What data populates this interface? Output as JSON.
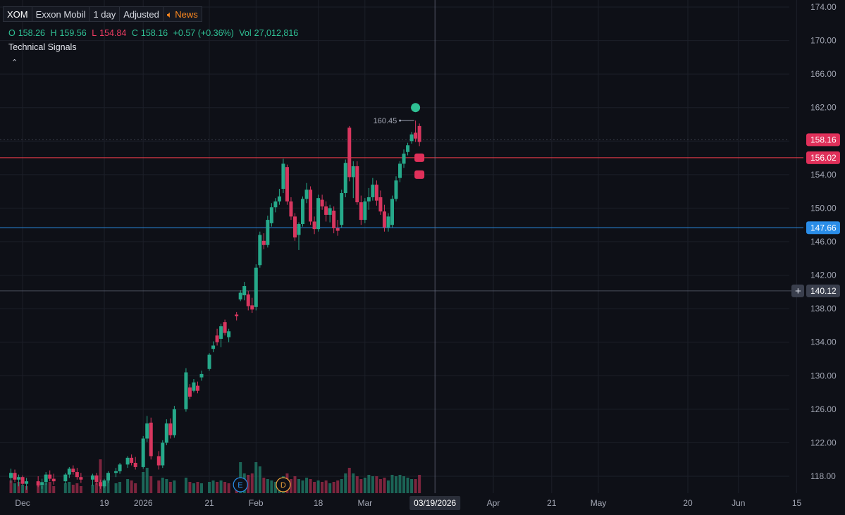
{
  "header": {
    "symbol": "XOM",
    "name": "Exxon Mobil",
    "interval": "1 day",
    "adjustment": "Adjusted",
    "news_label": "News",
    "news_icon": "speaker-icon"
  },
  "ohlc": {
    "o_label": "O",
    "o": "158.26",
    "h_label": "H",
    "h": "159.56",
    "l_label": "L",
    "l": "154.84",
    "c_label": "C",
    "c": "158.16",
    "change": "+0.57 (+0.36%)",
    "vol_label": "Vol",
    "vol": "27,012,816"
  },
  "technical_signals": "Technical Signals",
  "colors": {
    "up": "#26a98a",
    "down": "#d8365f",
    "bg": "#0e1017",
    "grid": "#1c1f29",
    "red_line": "#f23d4b",
    "blue_line": "#2a8de8",
    "last_price_badge": "#e0305a",
    "blue_badge": "#2a8de8",
    "crosshair_badge": "#3a3f4d"
  },
  "chart_data": {
    "type": "candlestick",
    "y_axis": {
      "min": 116,
      "max": 176,
      "ticks": [
        "174.00",
        "170.00",
        "166.00",
        "162.00",
        "158.00",
        "154.00",
        "150.00",
        "146.00",
        "142.00",
        "138.00",
        "134.00",
        "130.00",
        "126.00",
        "122.00",
        "118.00"
      ]
    },
    "x_axis": {
      "labels": [
        "Dec",
        "19",
        "2026",
        "21",
        "Feb",
        "18",
        "Mar",
        "Apr",
        "21",
        "May",
        "20",
        "Jun",
        "15"
      ],
      "label_days": [
        -21,
        0,
        10,
        27,
        39,
        55,
        67,
        100,
        115,
        127,
        150,
        163,
        178
      ],
      "crosshair_label": "03/19/2026",
      "crosshair_day": 85
    },
    "candles": [
      {
        "d": -24,
        "o": 117.8,
        "h": 118.9,
        "l": 117.2,
        "c": 118.4
      },
      {
        "d": -23,
        "o": 118.4,
        "h": 118.8,
        "l": 117.3,
        "c": 117.6
      },
      {
        "d": -22,
        "o": 117.6,
        "h": 118.2,
        "l": 116.8,
        "c": 117.9
      },
      {
        "d": -21,
        "o": 117.9,
        "h": 118.1,
        "l": 116.9,
        "c": 117.1
      },
      {
        "d": -20,
        "o": 117.1,
        "h": 117.8,
        "l": 116.4,
        "c": 117.4
      },
      {
        "d": -17,
        "o": 117.4,
        "h": 118.0,
        "l": 116.7,
        "c": 116.9
      },
      {
        "d": -16,
        "o": 116.9,
        "h": 117.7,
        "l": 116.5,
        "c": 117.3
      },
      {
        "d": -15,
        "o": 117.3,
        "h": 118.5,
        "l": 117.0,
        "c": 118.2
      },
      {
        "d": -14,
        "o": 118.2,
        "h": 118.7,
        "l": 117.4,
        "c": 117.7
      },
      {
        "d": -13,
        "o": 117.7,
        "h": 118.3,
        "l": 117.0,
        "c": 117.4
      },
      {
        "d": -10,
        "o": 117.4,
        "h": 118.4,
        "l": 117.1,
        "c": 118.2
      },
      {
        "d": -9,
        "o": 118.2,
        "h": 119.1,
        "l": 117.8,
        "c": 118.9
      },
      {
        "d": -8,
        "o": 118.9,
        "h": 119.3,
        "l": 118.2,
        "c": 118.5
      },
      {
        "d": -7,
        "o": 118.5,
        "h": 119.0,
        "l": 117.6,
        "c": 117.9
      },
      {
        "d": -6,
        "o": 117.9,
        "h": 118.4,
        "l": 117.2,
        "c": 117.6
      },
      {
        "d": -3,
        "o": 117.6,
        "h": 118.3,
        "l": 116.9,
        "c": 118.1
      },
      {
        "d": -2,
        "o": 118.1,
        "h": 118.4,
        "l": 117.0,
        "c": 117.3
      },
      {
        "d": -1,
        "o": 117.3,
        "h": 117.6,
        "l": 116.5,
        "c": 116.8
      },
      {
        "d": 0,
        "o": 116.8,
        "h": 117.7,
        "l": 116.6,
        "c": 117.5
      },
      {
        "d": 1,
        "o": 117.5,
        "h": 118.6,
        "l": 117.2,
        "c": 118.4
      },
      {
        "d": 3,
        "o": 118.4,
        "h": 119.0,
        "l": 117.9,
        "c": 118.6
      },
      {
        "d": 4,
        "o": 118.6,
        "h": 119.6,
        "l": 118.3,
        "c": 119.4
      },
      {
        "d": 6,
        "o": 119.4,
        "h": 120.4,
        "l": 119.0,
        "c": 120.2
      },
      {
        "d": 7,
        "o": 120.2,
        "h": 120.6,
        "l": 119.3,
        "c": 119.6
      },
      {
        "d": 8,
        "o": 119.6,
        "h": 120.3,
        "l": 118.8,
        "c": 119.1
      },
      {
        "d": 10,
        "o": 119.1,
        "h": 122.8,
        "l": 118.9,
        "c": 122.5
      },
      {
        "d": 11,
        "o": 122.5,
        "h": 125.2,
        "l": 122.1,
        "c": 124.3
      },
      {
        "d": 12,
        "o": 124.4,
        "h": 125.0,
        "l": 120.0,
        "c": 120.4
      },
      {
        "d": 14,
        "o": 120.4,
        "h": 121.0,
        "l": 118.8,
        "c": 119.3
      },
      {
        "d": 15,
        "o": 119.3,
        "h": 122.3,
        "l": 119.0,
        "c": 122.0
      },
      {
        "d": 16,
        "o": 122.0,
        "h": 124.8,
        "l": 121.7,
        "c": 124.3
      },
      {
        "d": 17,
        "o": 124.3,
        "h": 124.9,
        "l": 122.5,
        "c": 122.9
      },
      {
        "d": 18,
        "o": 122.9,
        "h": 126.4,
        "l": 122.6,
        "c": 126.0
      },
      {
        "d": 21,
        "o": 126.0,
        "h": 130.9,
        "l": 125.7,
        "c": 130.4
      },
      {
        "d": 22,
        "o": 128.6,
        "h": 129.0,
        "l": 127.2,
        "c": 127.5
      },
      {
        "d": 23,
        "o": 128.2,
        "h": 129.6,
        "l": 128.0,
        "c": 129.2
      },
      {
        "d": 24,
        "o": 128.8,
        "h": 129.3,
        "l": 127.9,
        "c": 128.2
      },
      {
        "d": 25,
        "o": 129.8,
        "h": 130.6,
        "l": 129.4,
        "c": 130.2
      },
      {
        "d": 27,
        "o": 130.8,
        "h": 132.7,
        "l": 130.6,
        "c": 132.5
      },
      {
        "d": 28,
        "o": 133.2,
        "h": 134.1,
        "l": 132.8,
        "c": 133.6
      },
      {
        "d": 29,
        "o": 134.8,
        "h": 135.6,
        "l": 133.6,
        "c": 134.0
      },
      {
        "d": 30,
        "o": 134.4,
        "h": 136.2,
        "l": 133.4,
        "c": 135.9
      },
      {
        "d": 31,
        "o": 136.4,
        "h": 136.7,
        "l": 134.8,
        "c": 135.1
      },
      {
        "d": 32,
        "o": 134.6,
        "h": 135.6,
        "l": 134.0,
        "c": 135.3
      },
      {
        "d": 34,
        "o": 137.3,
        "h": 137.6,
        "l": 136.6,
        "c": 137.1
      },
      {
        "d": 35,
        "o": 139.1,
        "h": 140.2,
        "l": 138.9,
        "c": 139.9
      },
      {
        "d": 36,
        "o": 139.6,
        "h": 141.2,
        "l": 139.0,
        "c": 140.7
      },
      {
        "d": 37,
        "o": 139.7,
        "h": 140.1,
        "l": 137.8,
        "c": 138.3
      },
      {
        "d": 38,
        "o": 138.4,
        "h": 139.3,
        "l": 137.5,
        "c": 137.9
      },
      {
        "d": 39,
        "o": 138.2,
        "h": 143.3,
        "l": 137.8,
        "c": 142.9
      },
      {
        "d": 40,
        "o": 143.2,
        "h": 147.2,
        "l": 142.9,
        "c": 146.8
      },
      {
        "d": 41,
        "o": 146.1,
        "h": 147.0,
        "l": 145.1,
        "c": 145.6
      },
      {
        "d": 42,
        "o": 145.6,
        "h": 149.1,
        "l": 145.3,
        "c": 148.6
      },
      {
        "d": 43,
        "o": 148.2,
        "h": 150.6,
        "l": 147.8,
        "c": 150.1
      },
      {
        "d": 44,
        "o": 150.1,
        "h": 151.2,
        "l": 149.5,
        "c": 150.8
      },
      {
        "d": 45,
        "o": 150.8,
        "h": 152.3,
        "l": 150.4,
        "c": 151.4
      },
      {
        "d": 46,
        "o": 152.3,
        "h": 155.9,
        "l": 151.8,
        "c": 155.3
      },
      {
        "d": 47,
        "o": 154.9,
        "h": 155.2,
        "l": 150.4,
        "c": 150.8
      },
      {
        "d": 48,
        "o": 150.8,
        "h": 151.3,
        "l": 148.6,
        "c": 149.0
      },
      {
        "d": 49,
        "o": 149.0,
        "h": 149.4,
        "l": 146.1,
        "c": 146.5
      },
      {
        "d": 50,
        "o": 146.8,
        "h": 148.3,
        "l": 145.0,
        "c": 148.1
      },
      {
        "d": 51,
        "o": 148.1,
        "h": 151.4,
        "l": 147.8,
        "c": 151.1
      },
      {
        "d": 52,
        "o": 151.1,
        "h": 153.0,
        "l": 150.6,
        "c": 152.2
      },
      {
        "d": 53,
        "o": 152.2,
        "h": 152.6,
        "l": 148.0,
        "c": 148.4
      },
      {
        "d": 54,
        "o": 148.4,
        "h": 149.0,
        "l": 146.9,
        "c": 147.5
      },
      {
        "d": 55,
        "o": 147.5,
        "h": 151.6,
        "l": 147.2,
        "c": 151.2
      },
      {
        "d": 56,
        "o": 151.0,
        "h": 151.6,
        "l": 149.8,
        "c": 150.2
      },
      {
        "d": 57,
        "o": 150.2,
        "h": 150.8,
        "l": 148.4,
        "c": 149.2
      },
      {
        "d": 58,
        "o": 149.2,
        "h": 150.4,
        "l": 148.3,
        "c": 150.0
      },
      {
        "d": 59,
        "o": 149.7,
        "h": 150.2,
        "l": 147.0,
        "c": 147.6
      },
      {
        "d": 60,
        "o": 147.6,
        "h": 148.6,
        "l": 146.7,
        "c": 147.3
      },
      {
        "d": 61,
        "o": 148.0,
        "h": 152.2,
        "l": 147.7,
        "c": 151.8
      },
      {
        "d": 62,
        "o": 151.8,
        "h": 155.8,
        "l": 151.3,
        "c": 155.4
      },
      {
        "d": 63,
        "o": 159.6,
        "h": 159.8,
        "l": 153.2,
        "c": 153.7
      },
      {
        "d": 64,
        "o": 153.7,
        "h": 155.6,
        "l": 151.2,
        "c": 155.0
      },
      {
        "d": 65,
        "o": 155.0,
        "h": 155.6,
        "l": 150.4,
        "c": 150.7
      },
      {
        "d": 66,
        "o": 150.7,
        "h": 151.5,
        "l": 148.0,
        "c": 148.6
      },
      {
        "d": 67,
        "o": 148.6,
        "h": 151.2,
        "l": 148.2,
        "c": 150.8
      },
      {
        "d": 68,
        "o": 150.8,
        "h": 152.4,
        "l": 149.8,
        "c": 151.3
      },
      {
        "d": 69,
        "o": 151.3,
        "h": 153.6,
        "l": 150.9,
        "c": 152.8
      },
      {
        "d": 70,
        "o": 152.8,
        "h": 153.3,
        "l": 150.3,
        "c": 150.9
      },
      {
        "d": 71,
        "o": 151.3,
        "h": 152.1,
        "l": 149.2,
        "c": 149.6
      },
      {
        "d": 72,
        "o": 149.6,
        "h": 150.4,
        "l": 147.2,
        "c": 147.7
      },
      {
        "d": 73,
        "o": 147.7,
        "h": 149.4,
        "l": 147.2,
        "c": 149.0
      },
      {
        "d": 74,
        "o": 148.0,
        "h": 151.5,
        "l": 147.7,
        "c": 151.1
      },
      {
        "d": 75,
        "o": 151.1,
        "h": 153.8,
        "l": 150.8,
        "c": 153.3
      },
      {
        "d": 76,
        "o": 153.6,
        "h": 155.6,
        "l": 153.1,
        "c": 155.3
      },
      {
        "d": 77,
        "o": 155.3,
        "h": 157.0,
        "l": 154.8,
        "c": 156.5
      },
      {
        "d": 78,
        "o": 156.7,
        "h": 157.8,
        "l": 156.3,
        "c": 157.5
      },
      {
        "d": 79,
        "o": 158.0,
        "h": 159.1,
        "l": 157.7,
        "c": 158.8
      },
      {
        "d": 80,
        "o": 159.0,
        "h": 160.45,
        "l": 157.9,
        "c": 158.3
      },
      {
        "d": 81,
        "o": 159.8,
        "h": 160.1,
        "l": 157.4,
        "c": 157.9
      }
    ],
    "volume_scale_max": 60,
    "volumes": [
      {
        "d": -24,
        "v": 9,
        "up": false
      },
      {
        "d": -23,
        "v": 7,
        "up": true
      },
      {
        "d": -22,
        "v": 8,
        "up": false
      },
      {
        "d": -21,
        "v": 6,
        "up": true
      },
      {
        "d": -20,
        "v": 5,
        "up": false
      },
      {
        "d": -17,
        "v": 6,
        "up": false
      },
      {
        "d": -16,
        "v": 5,
        "up": true
      },
      {
        "d": -15,
        "v": 7,
        "up": true
      },
      {
        "d": -14,
        "v": 8,
        "up": false
      },
      {
        "d": -13,
        "v": 5,
        "up": false
      },
      {
        "d": -10,
        "v": 7,
        "up": true
      },
      {
        "d": -9,
        "v": 8,
        "up": true
      },
      {
        "d": -8,
        "v": 6,
        "up": false
      },
      {
        "d": -7,
        "v": 7,
        "up": false
      },
      {
        "d": -6,
        "v": 5,
        "up": false
      },
      {
        "d": -3,
        "v": 6,
        "up": true
      },
      {
        "d": -2,
        "v": 7,
        "up": false
      },
      {
        "d": -1,
        "v": 24,
        "up": false
      },
      {
        "d": 0,
        "v": 6,
        "up": true
      },
      {
        "d": 1,
        "v": 9,
        "up": true
      },
      {
        "d": 3,
        "v": 7,
        "up": true
      },
      {
        "d": 4,
        "v": 8,
        "up": true
      },
      {
        "d": 6,
        "v": 10,
        "up": true
      },
      {
        "d": 7,
        "v": 9,
        "up": false
      },
      {
        "d": 8,
        "v": 7,
        "up": false
      },
      {
        "d": 10,
        "v": 15,
        "up": true
      },
      {
        "d": 11,
        "v": 18,
        "up": true
      },
      {
        "d": 12,
        "v": 12,
        "up": false
      },
      {
        "d": 14,
        "v": 9,
        "up": false
      },
      {
        "d": 15,
        "v": 11,
        "up": true
      },
      {
        "d": 16,
        "v": 10,
        "up": true
      },
      {
        "d": 17,
        "v": 8,
        "up": false
      },
      {
        "d": 18,
        "v": 9,
        "up": true
      },
      {
        "d": 21,
        "v": 11,
        "up": true
      },
      {
        "d": 22,
        "v": 8,
        "up": false
      },
      {
        "d": 23,
        "v": 7,
        "up": true
      },
      {
        "d": 24,
        "v": 8,
        "up": false
      },
      {
        "d": 25,
        "v": 7,
        "up": true
      },
      {
        "d": 27,
        "v": 8,
        "up": true
      },
      {
        "d": 28,
        "v": 9,
        "up": true
      },
      {
        "d": 29,
        "v": 8,
        "up": false
      },
      {
        "d": 30,
        "v": 9,
        "up": true
      },
      {
        "d": 31,
        "v": 8,
        "up": false
      },
      {
        "d": 32,
        "v": 7,
        "up": false
      },
      {
        "d": 34,
        "v": 8,
        "up": false
      },
      {
        "d": 35,
        "v": 22,
        "up": true
      },
      {
        "d": 36,
        "v": 14,
        "up": true
      },
      {
        "d": 37,
        "v": 13,
        "up": false
      },
      {
        "d": 38,
        "v": 14,
        "up": false
      },
      {
        "d": 39,
        "v": 22,
        "up": true
      },
      {
        "d": 40,
        "v": 19,
        "up": true
      },
      {
        "d": 41,
        "v": 11,
        "up": false
      },
      {
        "d": 42,
        "v": 10,
        "up": true
      },
      {
        "d": 43,
        "v": 9,
        "up": true
      },
      {
        "d": 44,
        "v": 8,
        "up": true
      },
      {
        "d": 45,
        "v": 8,
        "up": true
      },
      {
        "d": 46,
        "v": 12,
        "up": true
      },
      {
        "d": 47,
        "v": 14,
        "up": false
      },
      {
        "d": 48,
        "v": 10,
        "up": false
      },
      {
        "d": 49,
        "v": 12,
        "up": false
      },
      {
        "d": 50,
        "v": 10,
        "up": true
      },
      {
        "d": 51,
        "v": 9,
        "up": true
      },
      {
        "d": 52,
        "v": 11,
        "up": true
      },
      {
        "d": 53,
        "v": 10,
        "up": false
      },
      {
        "d": 54,
        "v": 8,
        "up": false
      },
      {
        "d": 55,
        "v": 9,
        "up": true
      },
      {
        "d": 56,
        "v": 8,
        "up": false
      },
      {
        "d": 57,
        "v": 9,
        "up": false
      },
      {
        "d": 58,
        "v": 7,
        "up": true
      },
      {
        "d": 59,
        "v": 8,
        "up": false
      },
      {
        "d": 60,
        "v": 9,
        "up": false
      },
      {
        "d": 61,
        "v": 10,
        "up": true
      },
      {
        "d": 62,
        "v": 14,
        "up": true
      },
      {
        "d": 63,
        "v": 18,
        "up": false
      },
      {
        "d": 64,
        "v": 14,
        "up": true
      },
      {
        "d": 65,
        "v": 12,
        "up": false
      },
      {
        "d": 66,
        "v": 10,
        "up": false
      },
      {
        "d": 67,
        "v": 11,
        "up": true
      },
      {
        "d": 68,
        "v": 13,
        "up": true
      },
      {
        "d": 69,
        "v": 12,
        "up": true
      },
      {
        "d": 70,
        "v": 12,
        "up": false
      },
      {
        "d": 71,
        "v": 10,
        "up": false
      },
      {
        "d": 72,
        "v": 11,
        "up": false
      },
      {
        "d": 73,
        "v": 9,
        "up": true
      },
      {
        "d": 74,
        "v": 13,
        "up": true
      },
      {
        "d": 75,
        "v": 12,
        "up": true
      },
      {
        "d": 76,
        "v": 13,
        "up": true
      },
      {
        "d": 77,
        "v": 12,
        "up": true
      },
      {
        "d": 78,
        "v": 11,
        "up": true
      },
      {
        "d": 79,
        "v": 10,
        "up": true
      },
      {
        "d": 80,
        "v": 10,
        "up": false
      },
      {
        "d": 81,
        "v": 13,
        "up": false
      }
    ],
    "high_marker_value": 160.45,
    "high_marker_label": "160.45",
    "last_price": 158.16,
    "last_price_label": "158.16",
    "red_line": 156.02,
    "red_line_label": "156.02",
    "blue_line": 147.66,
    "blue_line_label": "147.66",
    "crosshair_price": 140.12,
    "crosshair_price_label": "140.12",
    "event_markers": [
      {
        "letter": "E",
        "d": 35,
        "color": "#2a8de8"
      },
      {
        "letter": "D",
        "d": 46,
        "color": "#f0a43a"
      }
    ]
  }
}
